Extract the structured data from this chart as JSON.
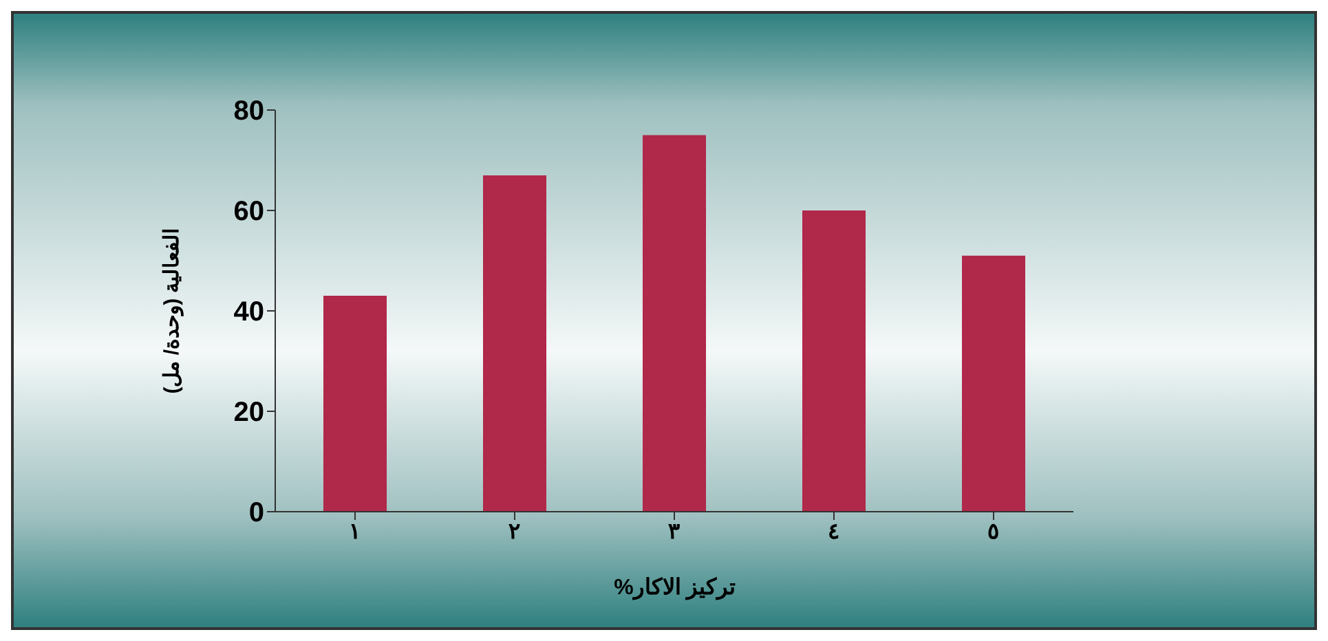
{
  "chart_data": {
    "type": "bar",
    "xlabel": "تركيز الاكار%",
    "ylabel": "الفعالية (وحدة/ مل)",
    "categories": [
      "١",
      "٢",
      "٣",
      "٤",
      "٥"
    ],
    "values": [
      43,
      67,
      75,
      60,
      51
    ],
    "color": "#b0284a",
    "ylim": [
      0,
      80
    ],
    "yticks": [
      0,
      20,
      40,
      60,
      80
    ]
  }
}
